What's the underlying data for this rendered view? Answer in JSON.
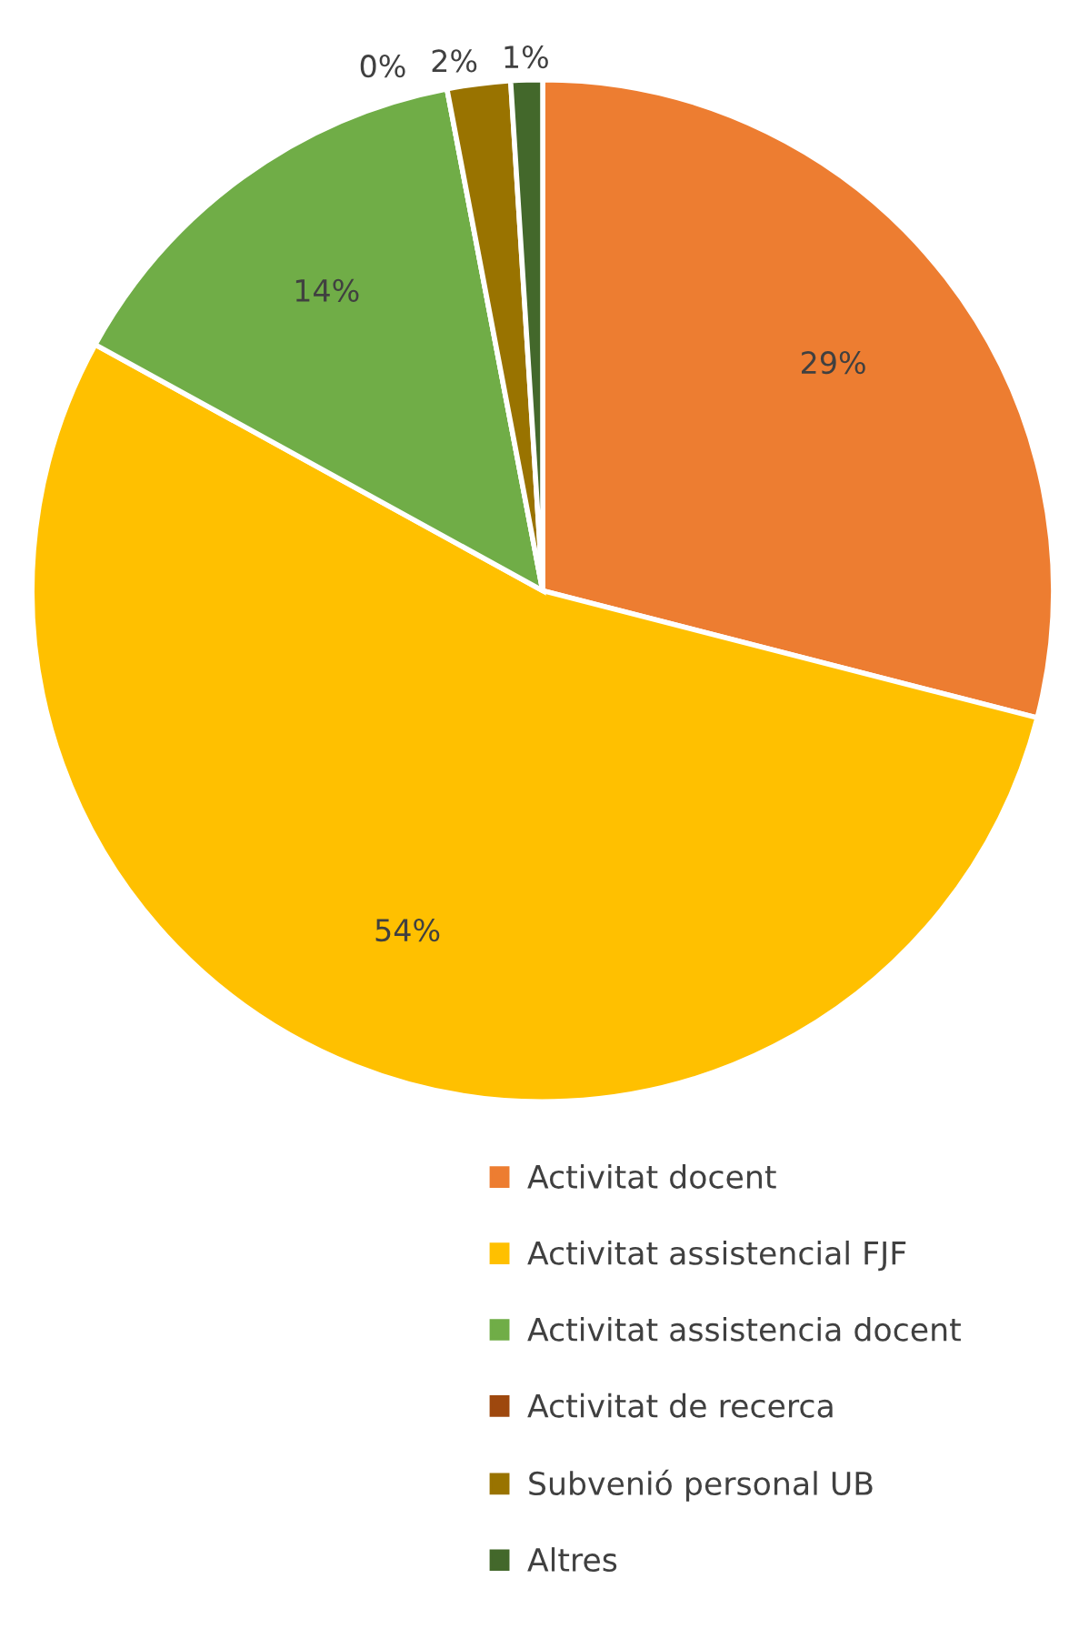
{
  "chart_data": {
    "type": "pie",
    "categories": [
      "Activitat docent",
      "Activitat assistencial FJF",
      "Activitat assistencia docent",
      "Activitat de recerca",
      "Subvenió personal UB",
      "Altres"
    ],
    "values": [
      29,
      54,
      14,
      0,
      2,
      1
    ],
    "colors": [
      "#ed7d31",
      "#ffc000",
      "#70ad47",
      "#9e480e",
      "#997300",
      "#43682b"
    ],
    "value_labels": [
      "29%",
      "54%",
      "14%",
      "0%",
      "2%",
      "1%"
    ],
    "legend": "bottom"
  }
}
